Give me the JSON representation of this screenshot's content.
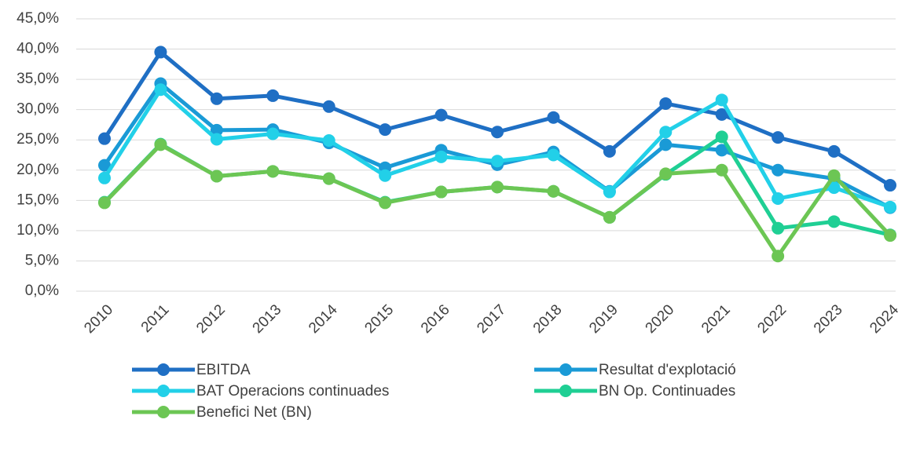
{
  "chart_data": {
    "type": "line",
    "categories": [
      "2010",
      "2011",
      "2012",
      "2013",
      "2014",
      "2015",
      "2016",
      "2017",
      "2018",
      "2019",
      "2020",
      "2021",
      "2022",
      "2023",
      "2024"
    ],
    "series": [
      {
        "name": "EBITDA",
        "color": "#1f6fc4",
        "values": [
          25.2,
          39.5,
          31.8,
          32.3,
          30.5,
          26.7,
          29.1,
          26.3,
          28.7,
          23.1,
          31.0,
          29.2,
          25.4,
          23.1,
          17.5
        ]
      },
      {
        "name": "Resultat d'explotació",
        "color": "#1a9ad6",
        "values": [
          20.8,
          34.3,
          26.6,
          26.7,
          24.5,
          20.4,
          23.3,
          20.9,
          23.0,
          16.5,
          24.2,
          23.3,
          20.0,
          18.6,
          13.8
        ]
      },
      {
        "name": "BAT Operacions continuades",
        "color": "#22d0e8",
        "values": [
          18.7,
          33.3,
          25.1,
          26.0,
          24.9,
          19.1,
          22.2,
          21.5,
          22.5,
          16.4,
          26.3,
          31.6,
          15.3,
          17.1,
          13.9
        ]
      },
      {
        "name": "BN Op. Continuades",
        "color": "#1fcf94",
        "values": [
          14.7,
          24.3,
          19.0,
          19.8,
          18.6,
          14.7,
          16.4,
          17.2,
          16.5,
          12.2,
          19.3,
          25.5,
          10.4,
          11.5,
          9.3
        ]
      },
      {
        "name": "Benefici Net (BN)",
        "color": "#6cc654",
        "values": [
          14.6,
          24.2,
          19.0,
          19.8,
          18.6,
          14.6,
          16.4,
          17.2,
          16.5,
          12.2,
          19.4,
          20.0,
          5.8,
          19.1,
          9.2
        ]
      }
    ],
    "ylim": [
      0,
      45
    ],
    "yticks": [
      {
        "value": 0,
        "label": "0,0%"
      },
      {
        "value": 5,
        "label": "5,0%"
      },
      {
        "value": 10,
        "label": "10,0%"
      },
      {
        "value": 15,
        "label": "15,0%"
      },
      {
        "value": 20,
        "label": "20,0%"
      },
      {
        "value": 25,
        "label": "25,0%"
      },
      {
        "value": 30,
        "label": "30,0%"
      },
      {
        "value": 35,
        "label": "35,0%"
      },
      {
        "value": 40,
        "label": "40,0%"
      },
      {
        "value": 45,
        "label": "45,0%"
      }
    ],
    "grid": true,
    "legend": "bottom"
  }
}
